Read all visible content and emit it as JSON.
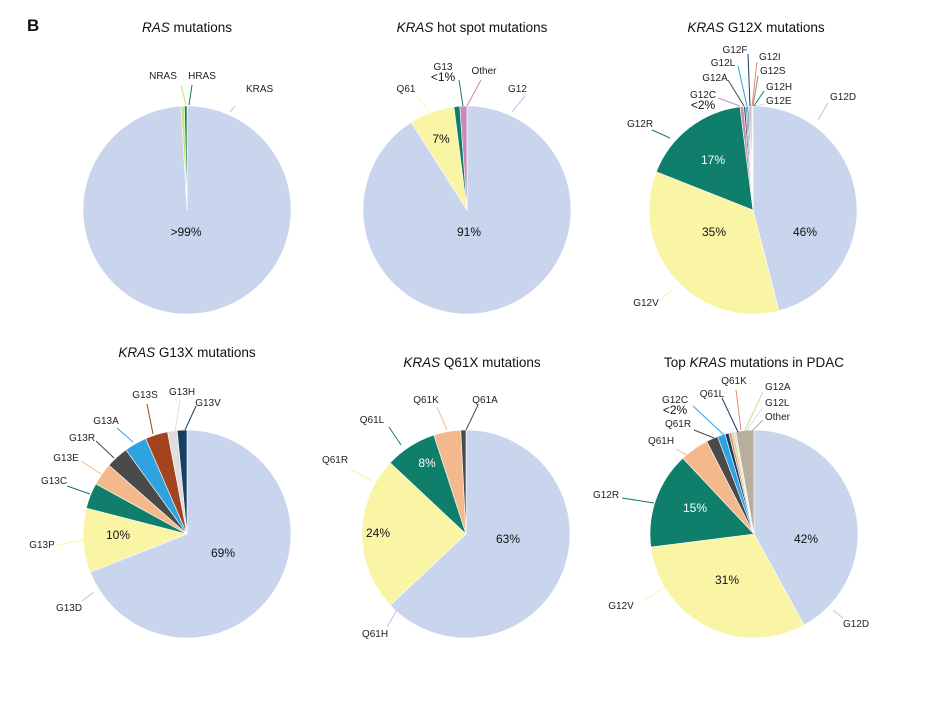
{
  "panel_letter": "B",
  "colors": {
    "light_blue": "#c9d5ec",
    "yellow": "#faf4a5",
    "teal": "#0f7f6c",
    "peach": "#f3b98c",
    "dark_gray": "#4a4a4a",
    "sky_blue": "#2ea3e0",
    "brown": "#a4441e",
    "light_gray": "#dedede",
    "dark_blue": "#173f61",
    "pink": "#c98bb9",
    "green": "#1b7a53",
    "yellow_green": "#c8e36a",
    "gray": "#8a8a8a",
    "salmon": "#e8886f",
    "olive": "#cfd78f",
    "tan": "#b7ae9c"
  },
  "chart_data": [
    {
      "type": "pie",
      "title_italic": "RAS",
      "title_rest": " mutations",
      "slices": [
        {
          "label": "KRAS",
          "value": 99.1,
          "color": "#c9d5ec",
          "pct_label": ">99%"
        },
        {
          "label": "NRAS",
          "value": 0.5,
          "color": "#c8e36a"
        },
        {
          "label": "HRAS",
          "value": 0.4,
          "color": "#1b7a53"
        }
      ]
    },
    {
      "type": "pie",
      "title_italic": "KRAS",
      "title_rest": " hot spot mutations",
      "slices": [
        {
          "label": "G12",
          "value": 91,
          "color": "#c9d5ec",
          "pct_label": "91%"
        },
        {
          "label": "Q61",
          "value": 7,
          "color": "#faf4a5",
          "pct_label": "7%"
        },
        {
          "label": "G13",
          "sub": "<1%",
          "value": 0.9,
          "color": "#0f7f6c"
        },
        {
          "label": "Other",
          "value": 1.1,
          "color": "#c98bb9"
        }
      ]
    },
    {
      "type": "pie",
      "title_italic": "KRAS",
      "title_rest": " G12X mutations",
      "slices": [
        {
          "label": "G12D",
          "value": 46,
          "color": "#c9d5ec",
          "pct_label": "46%"
        },
        {
          "label": "G12V",
          "value": 35,
          "color": "#faf4a5",
          "pct_label": "35%"
        },
        {
          "label": "G12R",
          "value": 17,
          "color": "#0f7f6c",
          "pct_label": "17%",
          "pct_light": true
        },
        {
          "label": "G12C",
          "sub": "<2%",
          "value": 0.55,
          "color": "#c98bb9"
        },
        {
          "label": "G12A",
          "value": 0.3,
          "color": "#4a4a4a"
        },
        {
          "label": "G12L",
          "value": 0.25,
          "color": "#2ea3e0"
        },
        {
          "label": "G12F",
          "value": 0.2,
          "color": "#173f61"
        },
        {
          "label": "G12I",
          "value": 0.2,
          "color": "#e8886f"
        },
        {
          "label": "G12S",
          "value": 0.2,
          "color": "#8a8a8a"
        },
        {
          "label": "G12H",
          "value": 0.15,
          "color": "#1b7a53"
        },
        {
          "label": "G12E",
          "value": 0.15,
          "color": "#dedede"
        }
      ]
    },
    {
      "type": "pie",
      "title_italic": "KRAS",
      "title_rest": " G13X mutations",
      "slices": [
        {
          "label": "G13D",
          "value": 69,
          "color": "#c9d5ec",
          "pct_label": "69%"
        },
        {
          "label": "G13P",
          "value": 10,
          "color": "#faf4a5",
          "pct_label": "10%"
        },
        {
          "label": "G13C",
          "value": 4,
          "color": "#0f7f6c"
        },
        {
          "label": "G13E",
          "value": 3.5,
          "color": "#f3b98c"
        },
        {
          "label": "G13R",
          "value": 3.5,
          "color": "#4a4a4a"
        },
        {
          "label": "G13A",
          "value": 3.5,
          "color": "#2ea3e0"
        },
        {
          "label": "G13S",
          "value": 3.5,
          "color": "#a4441e"
        },
        {
          "label": "G13H",
          "value": 1.5,
          "color": "#dedede"
        },
        {
          "label": "G13V",
          "value": 1.5,
          "color": "#173f61"
        }
      ]
    },
    {
      "type": "pie",
      "title_italic": "KRAS",
      "title_rest": " Q61X mutations",
      "slices": [
        {
          "label": "Q61H",
          "value": 63,
          "color": "#c9d5ec",
          "pct_label": "63%"
        },
        {
          "label": "Q61R",
          "value": 24,
          "color": "#faf4a5",
          "pct_label": "24%"
        },
        {
          "label": "Q61L",
          "value": 8,
          "color": "#0f7f6c",
          "pct_label": "8%",
          "pct_light": true
        },
        {
          "label": "Q61K",
          "value": 4.2,
          "color": "#f3b98c"
        },
        {
          "label": "Q61A",
          "value": 0.8,
          "color": "#4a4a4a"
        }
      ]
    },
    {
      "type": "pie",
      "title_pre": "Top ",
      "title_italic": "KRAS",
      "title_rest": " mutations in PDAC",
      "slices": [
        {
          "label": "G12D",
          "value": 42,
          "color": "#c9d5ec",
          "pct_label": "42%"
        },
        {
          "label": "G12V",
          "value": 31,
          "color": "#faf4a5",
          "pct_label": "31%"
        },
        {
          "label": "G12R",
          "value": 15,
          "color": "#0f7f6c",
          "pct_label": "15%",
          "pct_light": true
        },
        {
          "label": "Q61H",
          "value": 4.5,
          "color": "#f3b98c"
        },
        {
          "label": "Q61R",
          "value": 1.8,
          "color": "#4a4a4a"
        },
        {
          "label": "G12C",
          "sub": "<2%",
          "value": 1.2,
          "color": "#2ea3e0"
        },
        {
          "label": "Q61L",
          "value": 0.6,
          "color": "#173f61"
        },
        {
          "label": "Q61K",
          "value": 0.4,
          "color": "#e8886f"
        },
        {
          "label": "G12A",
          "value": 0.4,
          "color": "#cfd78f"
        },
        {
          "label": "G12L",
          "value": 0.3,
          "color": "#dedede"
        },
        {
          "label": "Other",
          "value": 2.8,
          "color": "#b7ae9c"
        }
      ]
    }
  ]
}
